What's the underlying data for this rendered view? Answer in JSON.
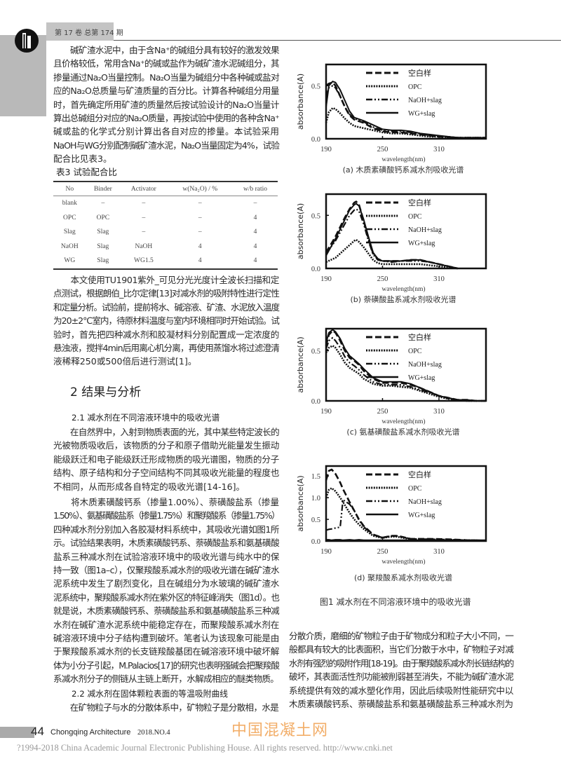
{
  "header": {
    "issue": "第 17 卷 总第 174 期"
  },
  "left_column": {
    "p1": [
      "　　碱矿渣水泥中，由于含Na⁺的碱组分具有较好的激发效果",
      "且价格较低，常用含Na⁺的碱或盐作为碱矿渣水泥碱组分，其",
      "掺量通过Na₂O当量控制。Na₂O当量为碱组分中各种碱或盐对",
      "应的Na₂O总质量与矿渣质量的百分比。计算各种碱组分用量",
      "时，首先确定所用矿渣的质量然后按试验设计的Na₂O当量计",
      "算出总碱组分对应的Na₂O质量，再按试验中使用的各种含Na⁺",
      "碱或盐的化学式分别计算出各自对应的掺量。本试验采用",
      "NaOH与WG分别配制碱矿渣水泥，Na₂O当量固定为4%，试验",
      "配合比见表3。"
    ],
    "table_title": "表3 试验配合比",
    "table": {
      "headers": [
        "No",
        "Binder",
        "Activator",
        "w(Na₂O) / %",
        "w/b ratio"
      ],
      "rows": [
        [
          "blank",
          "–",
          "–",
          "–",
          "–"
        ],
        [
          "OPC",
          "OPC",
          "–",
          "–",
          "4"
        ],
        [
          "Slag",
          "Slag",
          "–",
          "–",
          "4"
        ],
        [
          "NaOH",
          "Slag",
          "NaOH",
          "4",
          "4"
        ],
        [
          "WG",
          "Slag",
          "WG1.5",
          "4",
          "4"
        ]
      ]
    },
    "p2": [
      "　　本文使用TU1901紫外_可见分光光度计全波长扫描和定",
      "点测试，根据朗伯_比尔定律[13]对减水剂的吸附特性进行定性",
      "和定量分析。试验前，提前将水、碱溶液、矿渣、水泥放入温度",
      "为20±2℃室内，待原材料温度与室内环境相同时开始试验。试",
      "验时，首先把四种减水剂和胶凝材料分别配置成一定浓度的",
      "悬浊液，搅拌4min后用离心机分离，再使用蒸馏水将过滤澄清",
      "液稀释250或500倍后进行测试[1]。"
    ],
    "section_title": "2 结果与分析",
    "sub_21": "2.1 减水剂在不同溶液环境中的吸收光谱",
    "p3": [
      "　　在自然界中，入射到物质表面的光，其中某些特定波长的",
      "光被物质吸收后，该物质的分子和原子借助光能量发生振动",
      "能级跃迁和电子能级跃迁形成物质的吸光谱图，物质的分子",
      "结构、原子结构和分子空间结构不同其吸收光能量的程度也",
      "不相同，从而形成各自特定的吸收光谱[14-16]。"
    ],
    "p4": [
      "　　将木质素磺酸钙系（掺量1.00%）、萘磺酸盐系（掺量",
      "1.50%）、氨基磺酸盐系（掺量1.75%）和聚羧酸系（掺量1.75%）",
      "四种减水剂分别加入各胶凝材料系统中，其吸收光谱如图1所",
      "示。试验结果表明，木质素磺酸钙系、萘磺酸盐系和氨基磺酸",
      "盐系三种减水剂在试验溶液环境中的吸收光谱与纯水中的保",
      "持一致（图1a–c），仅聚羧酸系减水剂的吸收光谱在碱矿渣水",
      "泥系统中发生了剧烈变化，且在碱组分为水玻璃的碱矿渣水",
      "泥系统中，聚羧酸系减水剂在紫外区的特征峰消失（图1d）。也",
      "就是说，木质素磺酸钙系、萘磺酸盐系和氨基磺酸盐系三种减",
      "水剂在碱矿渣水泥系统中能稳定存在，而聚羧酸系减水剂在",
      "碱溶液环境中分子结构遭到破坏。笔者认为该现象可能是由",
      "于聚羧酸系减水剂的长支链羧酸基团在碱溶液环境中破坏解",
      "体为小分子引起，M.Palacios[17]的研究也表明强碱会把聚羧酸",
      "系减水剂分子的侧链从主链上断开，水解成相应的醚类物质。"
    ],
    "sub_22": "2.2 减水剂在固体颗粒表面的等温吸附曲线",
    "p5": [
      "　　在矿物粒子与水的分散体系中，矿物粒子是分散相，水是"
    ]
  },
  "right_column": {
    "figure_caption": "图1 减水剂在不同溶液环境中的吸收光谱",
    "p6": [
      "分散介质，磨细的矿物粒子由于矿物成分和粒子大小不同，一",
      "般都具有较大的比表面积，当它们分散于水中，矿物粒子对减",
      "水剂有强烈的吸附作用[18-19]。由于聚羧酸系减水剂长链结构的",
      "破坏，其表面活性剂功能被削弱甚至消失，不能为碱矿渣水泥",
      "系统提供有效的减水塑化作用，因此后续吸附性能研究中以",
      "木质素磺酸钙系、萘磺酸盐系和氨基磺酸盐系三种减水剂为"
    ]
  },
  "footer": {
    "page": "44",
    "journal": "Chongqing Architecture",
    "date": "2018.NO.4",
    "copyright": "?1994-2018 China Academic Journal Electronic Publishing House. All rights reserved.    http://www.cnki.net",
    "watermark": "中国混凝土网"
  },
  "chart_data": [
    {
      "type": "line",
      "caption": "(a) 木质素磺酸钙系减水剂吸收光谱",
      "xlabel": "wavelength(nm)",
      "ylabel": "absorbance(A)",
      "xlim": [
        190,
        360
      ],
      "ylim": [
        0,
        0.7
      ],
      "xticks": [
        190,
        250,
        310
      ],
      "yticks": [
        0,
        0.5
      ],
      "ytick_labels": [
        "0.0",
        "0.5"
      ],
      "legend": "top-right",
      "x": [
        190,
        193,
        197,
        200,
        205,
        210,
        215,
        220,
        230,
        240,
        250,
        260,
        270,
        280,
        290,
        300,
        310,
        320,
        330,
        340,
        350,
        360
      ],
      "series": [
        {
          "name": "空白样",
          "style": "dashed",
          "values": [
            0.5,
            0.52,
            0.53,
            0.5,
            0.4,
            0.3,
            0.22,
            0.18,
            0.15,
            0.1,
            0.07,
            0.06,
            0.06,
            0.05,
            0.04,
            0.03,
            0.02,
            0.01,
            0.01,
            0.01,
            0.01,
            0.01
          ]
        },
        {
          "name": "OPC",
          "style": "dotted",
          "values": [
            0.15,
            0.25,
            0.29,
            0.28,
            0.24,
            0.19,
            0.15,
            0.12,
            0.1,
            0.08,
            0.06,
            0.05,
            0.05,
            0.04,
            0.03,
            0.02,
            0.02,
            0.01,
            0.01,
            0.01,
            0.01,
            0.01
          ]
        },
        {
          "name": "NaOH+slag",
          "style": "dashdot",
          "values": [
            0.4,
            0.48,
            0.5,
            0.48,
            0.4,
            0.3,
            0.23,
            0.19,
            0.16,
            0.11,
            0.08,
            0.07,
            0.07,
            0.06,
            0.05,
            0.03,
            0.02,
            0.02,
            0.01,
            0.01,
            0.01,
            0.01
          ]
        },
        {
          "name": "WG+slag",
          "style": "solid",
          "values": [
            0.3,
            0.5,
            0.54,
            0.53,
            0.46,
            0.36,
            0.26,
            0.2,
            0.17,
            0.13,
            0.09,
            0.08,
            0.08,
            0.07,
            0.05,
            0.04,
            0.03,
            0.02,
            0.01,
            0.01,
            0.01,
            0.01
          ]
        }
      ]
    },
    {
      "type": "line",
      "caption": "(b) 萘磺酸盐系减水剂吸收光谱",
      "xlabel": "wavelength(nm)",
      "ylabel": "absorbance(A)",
      "xlim": [
        190,
        360
      ],
      "ylim": [
        0,
        0.7
      ],
      "xticks": [
        190,
        250,
        310
      ],
      "yticks": [
        0,
        0.5
      ],
      "ytick_labels": [
        "0.0",
        "0.5"
      ],
      "legend": "top-right",
      "x": [
        190,
        200,
        210,
        215,
        220,
        222,
        225,
        230,
        235,
        240,
        245,
        250,
        260,
        270,
        280,
        290,
        300,
        310,
        320,
        330
      ],
      "series": [
        {
          "name": "空白样",
          "style": "dashed",
          "values": [
            0.15,
            0.3,
            0.48,
            0.56,
            0.62,
            0.63,
            0.6,
            0.45,
            0.28,
            0.14,
            0.09,
            0.07,
            0.07,
            0.07,
            0.08,
            0.08,
            0.06,
            0.04,
            0.02,
            0.0
          ]
        },
        {
          "name": "OPC",
          "style": "dotted",
          "values": [
            0.06,
            0.1,
            0.18,
            0.22,
            0.26,
            0.27,
            0.25,
            0.2,
            0.14,
            0.08,
            0.05,
            0.04,
            0.04,
            0.04,
            0.04,
            0.04,
            0.03,
            0.02,
            0.01,
            0.0
          ]
        },
        {
          "name": "NaOH+slag",
          "style": "dashdot",
          "values": [
            0.14,
            0.26,
            0.42,
            0.5,
            0.55,
            0.56,
            0.54,
            0.42,
            0.26,
            0.13,
            0.08,
            0.07,
            0.06,
            0.07,
            0.07,
            0.07,
            0.06,
            0.04,
            0.02,
            0.0
          ]
        },
        {
          "name": "WG+slag",
          "style": "solid",
          "values": [
            0.12,
            0.28,
            0.46,
            0.55,
            0.6,
            0.61,
            0.59,
            0.46,
            0.3,
            0.15,
            0.09,
            0.07,
            0.07,
            0.07,
            0.08,
            0.08,
            0.06,
            0.04,
            0.02,
            0.0
          ]
        }
      ]
    },
    {
      "type": "line",
      "caption": "(c) 氨基磺酸盐系减水剂吸收光谱",
      "xlabel": "wavelength(nm)",
      "ylabel": "absorbance(A)",
      "xlim": [
        190,
        360
      ],
      "ylim": [
        0,
        0.72
      ],
      "xticks": [
        190,
        250,
        310
      ],
      "yticks": [
        0,
        0.5
      ],
      "ytick_labels": [
        "0.0",
        "0.5"
      ],
      "legend": "top-right",
      "x": [
        190,
        193,
        197,
        200,
        205,
        210,
        215,
        220,
        225,
        230,
        240,
        250,
        260,
        270,
        280,
        290,
        300,
        310,
        320,
        330,
        340,
        350,
        360
      ],
      "series": [
        {
          "name": "空白样",
          "style": "dashed",
          "values": [
            0.55,
            0.66,
            0.7,
            0.68,
            0.6,
            0.5,
            0.43,
            0.4,
            0.36,
            0.3,
            0.22,
            0.18,
            0.18,
            0.18,
            0.16,
            0.13,
            0.09,
            0.05,
            0.03,
            0.01,
            0.01,
            0.0,
            0.0
          ]
        },
        {
          "name": "OPC",
          "style": "dotted",
          "values": [
            0.48,
            0.53,
            0.55,
            0.53,
            0.46,
            0.38,
            0.33,
            0.3,
            0.27,
            0.22,
            0.17,
            0.15,
            0.15,
            0.14,
            0.13,
            0.1,
            0.07,
            0.04,
            0.02,
            0.01,
            0.0,
            0.0,
            0.0
          ]
        },
        {
          "name": "NaOH+slag",
          "style": "dashdot",
          "values": [
            0.52,
            0.6,
            0.63,
            0.6,
            0.53,
            0.44,
            0.38,
            0.35,
            0.31,
            0.26,
            0.19,
            0.16,
            0.16,
            0.16,
            0.14,
            0.11,
            0.08,
            0.05,
            0.02,
            0.01,
            0.0,
            0.0,
            0.0
          ]
        },
        {
          "name": "WG+slag",
          "style": "solid",
          "values": [
            0.58,
            0.68,
            0.71,
            0.69,
            0.62,
            0.52,
            0.45,
            0.41,
            0.37,
            0.32,
            0.23,
            0.19,
            0.19,
            0.19,
            0.17,
            0.13,
            0.09,
            0.05,
            0.03,
            0.01,
            0.01,
            0.0,
            0.0
          ]
        }
      ]
    },
    {
      "type": "line",
      "caption": "(d) 聚羧酸系减水剂吸收光谱",
      "xlabel": "wavelength(nm)",
      "ylabel": "absorbance(A)",
      "xlim": [
        190,
        360
      ],
      "ylim": [
        0,
        1.73
      ],
      "xticks": [
        190,
        250,
        310
      ],
      "yticks": [
        0,
        0.5,
        1.0,
        1.5
      ],
      "ytick_labels": [
        "0.0",
        "0.5",
        "1.0",
        "1.5"
      ],
      "legend": "top-right",
      "x": [
        190,
        193,
        196,
        200,
        205,
        208,
        215,
        220,
        225,
        230,
        240,
        250,
        255,
        260,
        265,
        270,
        280,
        300,
        320,
        340,
        360
      ],
      "series": [
        {
          "name": "空白样",
          "style": "dashed",
          "values": [
            1.4,
            1.62,
            1.65,
            1.55,
            1.35,
            1.2,
            0.9,
            0.7,
            0.5,
            0.35,
            0.15,
            0.08,
            0.1,
            0.12,
            0.12,
            0.1,
            0.05,
            0.05,
            0.04,
            0.02,
            0.01
          ]
        },
        {
          "name": "OPC",
          "style": "dotted",
          "values": [
            1.0,
            1.18,
            1.22,
            1.15,
            1.0,
            0.9,
            0.65,
            0.5,
            0.38,
            0.28,
            0.12,
            0.07,
            0.09,
            0.1,
            0.1,
            0.08,
            0.04,
            0.04,
            0.03,
            0.02,
            0.01
          ]
        },
        {
          "name": "NaOH+slag",
          "style": "dashdot",
          "values": [
            0.25,
            0.27,
            0.28,
            0.3,
            0.32,
            0.95,
            0.85,
            0.7,
            0.48,
            0.33,
            0.14,
            0.08,
            0.1,
            0.12,
            0.12,
            0.1,
            0.05,
            0.04,
            0.03,
            0.02,
            0.01
          ]
        },
        {
          "name": "WG+slag",
          "style": "solid",
          "values": [
            0.03,
            0.03,
            0.02,
            0.03,
            0.03,
            0.02,
            0.03,
            0.02,
            0.03,
            0.02,
            0.02,
            0.02,
            0.02,
            0.02,
            0.02,
            0.02,
            0.02,
            0.02,
            0.02,
            0.02,
            0.02
          ]
        }
      ]
    }
  ]
}
